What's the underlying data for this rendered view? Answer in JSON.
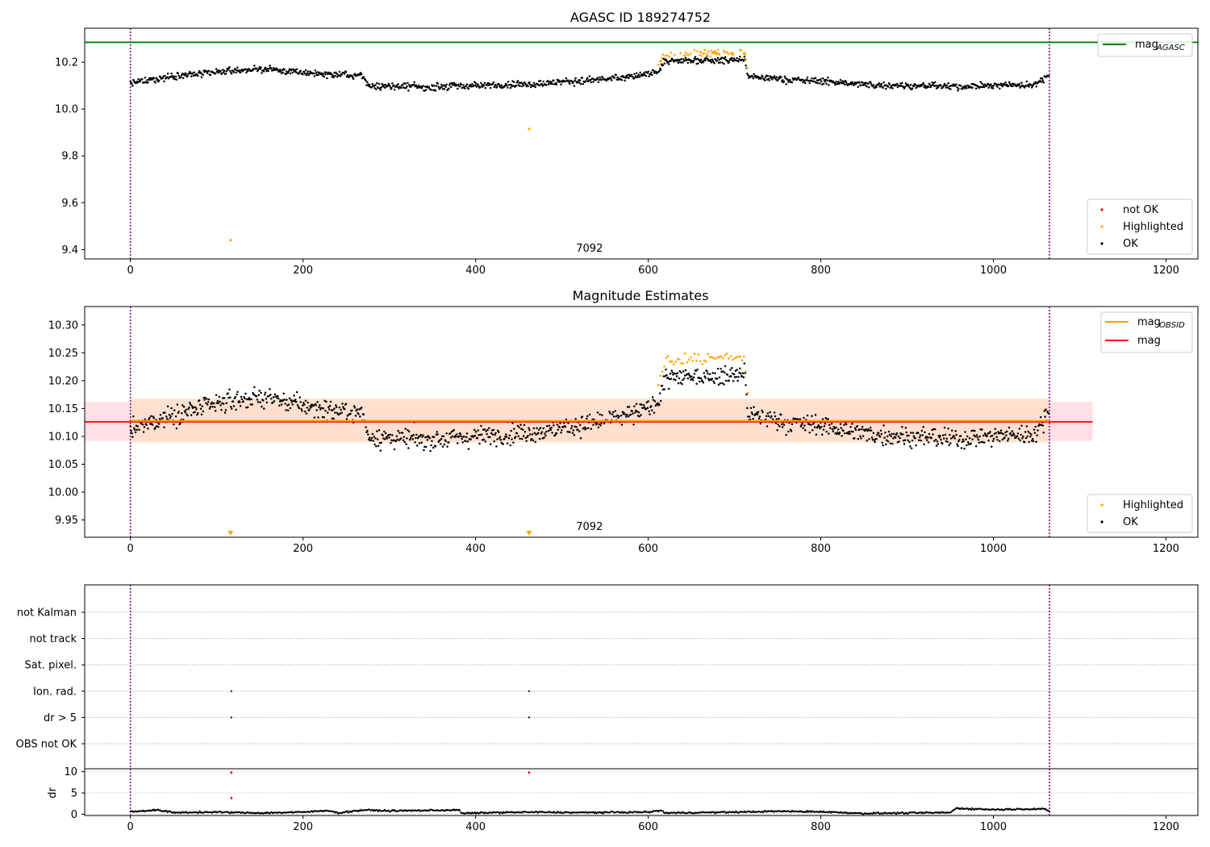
{
  "chart_data": [
    {
      "type": "scatter",
      "title": "AGASC ID 189274752",
      "xlim": [
        -53,
        1237
      ],
      "ylim": [
        9.36,
        10.345
      ],
      "xticks": [
        "0",
        "200",
        "400",
        "600",
        "800",
        "1000",
        "1200"
      ],
      "yticks": [
        "9.4",
        "9.6",
        "9.8",
        "10.0",
        "10.2"
      ],
      "xtick_values": [
        0,
        200,
        400,
        600,
        800,
        1000,
        1200
      ],
      "ytick_values": [
        9.4,
        9.6,
        9.8,
        10.0,
        10.2
      ],
      "annotation": "7092",
      "annotation_x": 532,
      "obs_boundaries": [
        0,
        1065
      ],
      "hlines": [
        {
          "name": "mag_AGASC",
          "value": 10.285,
          "color": "#008000"
        }
      ],
      "legend_upper": {
        "main": "mag",
        "sub": "AGASC"
      },
      "legend_lower": [
        "not OK",
        "Highlighted",
        "OK"
      ],
      "outliers": [
        {
          "x": 116,
          "y": 9.44
        },
        {
          "x": 462,
          "y": 9.915
        }
      ],
      "colors": {
        "ok": "#000000",
        "highlighted": "#ffa500",
        "not_ok": "#ff0000"
      },
      "series_trend": [
        [
          0,
          10.11
        ],
        [
          40,
          10.135
        ],
        [
          80,
          10.15
        ],
        [
          120,
          10.165
        ],
        [
          160,
          10.17
        ],
        [
          200,
          10.155
        ],
        [
          240,
          10.145
        ],
        [
          270,
          10.14
        ],
        [
          275,
          10.1
        ],
        [
          320,
          10.095
        ],
        [
          360,
          10.095
        ],
        [
          400,
          10.1
        ],
        [
          440,
          10.105
        ],
        [
          480,
          10.11
        ],
        [
          520,
          10.12
        ],
        [
          560,
          10.13
        ],
        [
          600,
          10.15
        ],
        [
          612,
          10.165
        ],
        [
          620,
          10.205
        ],
        [
          700,
          10.21
        ],
        [
          712,
          10.215
        ],
        [
          715,
          10.14
        ],
        [
          760,
          10.125
        ],
        [
          800,
          10.12
        ],
        [
          850,
          10.105
        ],
        [
          900,
          10.1
        ],
        [
          950,
          10.095
        ],
        [
          1000,
          10.1
        ],
        [
          1050,
          10.105
        ],
        [
          1065,
          10.15
        ]
      ],
      "highlighted_range": [
        612,
        716
      ],
      "highlighted_offset": 0.03
    },
    {
      "type": "scatter",
      "title": "Magnitude Estimates",
      "xlim": [
        -53,
        1237
      ],
      "ylim": [
        9.919,
        10.333
      ],
      "xticks": [
        "0",
        "200",
        "400",
        "600",
        "800",
        "1000",
        "1200"
      ],
      "yticks": [
        "9.95",
        "10.00",
        "10.05",
        "10.10",
        "10.15",
        "10.20",
        "10.25",
        "10.30"
      ],
      "xtick_values": [
        0,
        200,
        400,
        600,
        800,
        1000,
        1200
      ],
      "ytick_values": [
        9.95,
        10.0,
        10.05,
        10.1,
        10.15,
        10.2,
        10.25,
        10.3
      ],
      "annotation": "7092",
      "annotation_x": 532,
      "obs_boundaries": [
        0,
        1065
      ],
      "mag_line": {
        "value": 10.126,
        "x": [
          -53,
          1115
        ],
        "band": [
          10.092,
          10.162
        ],
        "color": "#ff0000",
        "band_color": "#ffdde1"
      },
      "mag_obsid_line": {
        "value": 10.128,
        "x": [
          0,
          1065
        ],
        "band": [
          10.089,
          10.168
        ],
        "color": "#ffa500",
        "band_color": "#ffe0cc"
      },
      "legend_upper": [
        {
          "main": "mag",
          "sub": "OBSID"
        },
        {
          "main": "mag",
          "sub": ""
        }
      ],
      "legend_lower": [
        "Highlighted",
        "OK"
      ],
      "lower_markers": [
        116,
        462
      ],
      "colors": {
        "ok": "#000000",
        "highlighted": "#ffa500"
      }
    },
    {
      "type": "scatter",
      "title": "",
      "xlim": [
        -53,
        1237
      ],
      "xticks": [
        "0",
        "200",
        "400",
        "600",
        "800",
        "1000",
        "1200"
      ],
      "xtick_values": [
        0,
        200,
        400,
        600,
        800,
        1000,
        1200
      ],
      "flag_rows": [
        "not Kalman",
        "not track",
        "Sat. pixel.",
        "Ion. rad.",
        "dr > 5",
        "OBS not OK"
      ],
      "flag_points": [
        {
          "row": "Ion. rad.",
          "x": [
            117,
            462
          ]
        },
        {
          "row": "dr > 5",
          "x": [
            117,
            462
          ]
        }
      ],
      "dr_panel": {
        "ylabel": "dr",
        "yticks": [
          "0",
          "5",
          "10"
        ],
        "ytick_values": [
          0,
          5,
          10
        ],
        "ylim": [
          -0.3,
          10.5
        ]
      },
      "dr_trend": [
        [
          0,
          0.6
        ],
        [
          30,
          1.0
        ],
        [
          50,
          0.4
        ],
        [
          100,
          0.5
        ],
        [
          150,
          0.3
        ],
        [
          200,
          0.5
        ],
        [
          230,
          0.9
        ],
        [
          240,
          0.3
        ],
        [
          270,
          1.0
        ],
        [
          300,
          0.8
        ],
        [
          380,
          1.0
        ],
        [
          385,
          0.2
        ],
        [
          420,
          0.4
        ],
        [
          470,
          0.5
        ],
        [
          520,
          0.4
        ],
        [
          600,
          0.5
        ],
        [
          615,
          0.9
        ],
        [
          620,
          0.3
        ],
        [
          700,
          0.5
        ],
        [
          750,
          0.7
        ],
        [
          800,
          0.6
        ],
        [
          850,
          0.2
        ],
        [
          900,
          0.3
        ],
        [
          950,
          0.4
        ],
        [
          957,
          1.4
        ],
        [
          1000,
          1.1
        ],
        [
          1060,
          1.3
        ],
        [
          1065,
          0.5
        ]
      ],
      "dr_red_points": [
        {
          "x": 117,
          "y": 9.8
        },
        {
          "x": 117,
          "y": 3.8
        },
        {
          "x": 462,
          "y": 9.8
        }
      ],
      "obs_boundaries": [
        0,
        1065
      ]
    }
  ]
}
